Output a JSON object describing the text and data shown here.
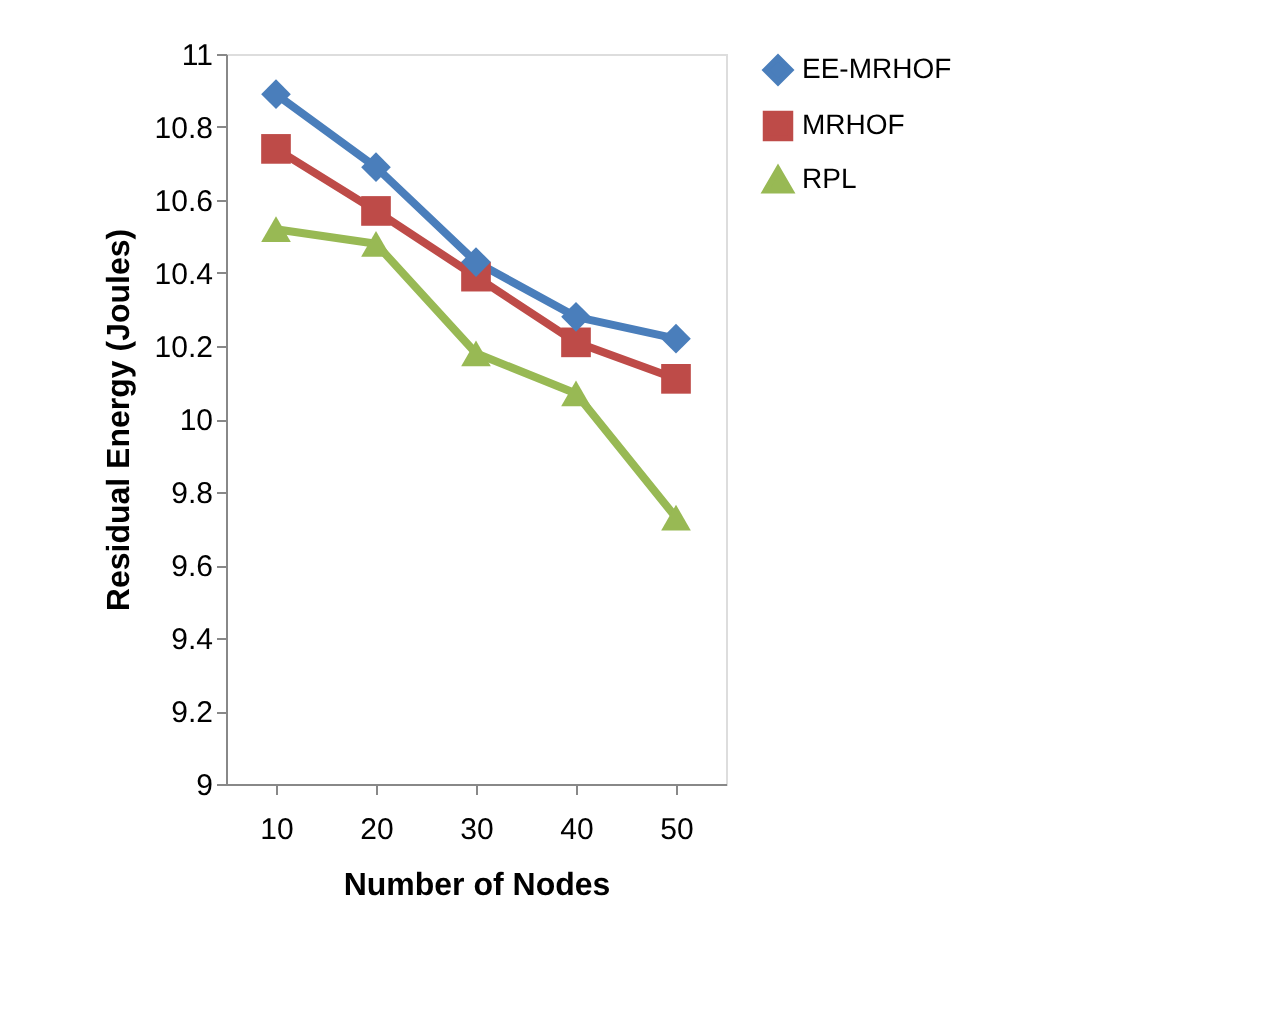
{
  "chart_data": {
    "type": "line",
    "xlabel": "Number of Nodes",
    "ylabel": "Residual Energy (Joules)",
    "categories": [
      "10",
      "20",
      "30",
      "40",
      "50"
    ],
    "series": [
      {
        "name": "EE-MRHOF",
        "color": "#4a7ebb",
        "marker": "diamond",
        "values": [
          10.89,
          10.69,
          10.43,
          10.28,
          10.22
        ]
      },
      {
        "name": "MRHOF",
        "color": "#be4b48",
        "marker": "square",
        "values": [
          10.74,
          10.57,
          10.39,
          10.21,
          10.11
        ]
      },
      {
        "name": "RPL",
        "color": "#98b954",
        "marker": "triangle",
        "values": [
          10.52,
          10.48,
          10.18,
          10.07,
          9.73
        ]
      }
    ],
    "ylim": [
      9,
      11
    ],
    "yticks": [
      9,
      9.2,
      9.4,
      9.6,
      9.8,
      10,
      10.2,
      10.4,
      10.6,
      10.8,
      11
    ],
    "grid": false,
    "legend": "right",
    "line_style": "solid"
  }
}
